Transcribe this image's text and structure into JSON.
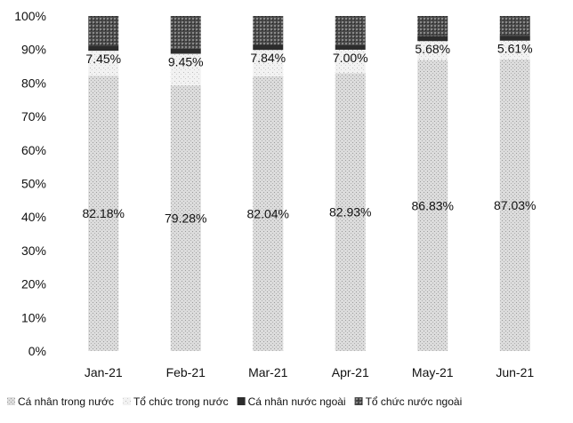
{
  "chart_data": {
    "type": "bar",
    "stacked": true,
    "percent_stacked": true,
    "categories": [
      "Jan-21",
      "Feb-21",
      "Mar-21",
      "Apr-21",
      "May-21",
      "Jun-21"
    ],
    "series": [
      {
        "name": "Cá nhân trong nước",
        "values": [
          82.18,
          79.28,
          82.04,
          82.93,
          86.83,
          87.03
        ],
        "labels": [
          "82.18%",
          "79.28%",
          "82.04%",
          "82.93%",
          "86.83%",
          "87.03%"
        ],
        "color": "#d6d6d6"
      },
      {
        "name": "Tổ chức trong nước",
        "values": [
          7.45,
          9.45,
          7.84,
          7.0,
          5.68,
          5.61
        ],
        "labels": [
          "7.45%",
          "9.45%",
          "7.84%",
          "7.00%",
          "5.68%",
          "5.61%"
        ],
        "color": "#ececec"
      },
      {
        "name": "Cá nhân nước ngoài",
        "values": [
          1.5,
          1.5,
          1.5,
          1.5,
          1.5,
          1.5
        ],
        "labels": [
          "",
          "",
          "",
          "",
          "",
          ""
        ],
        "color": "#2c2c2c"
      },
      {
        "name": "Tổ chức nước ngoài",
        "values": [
          8.87,
          9.77,
          8.62,
          8.57,
          5.99,
          5.86
        ],
        "labels": [
          "",
          "",
          "",
          "",
          "",
          ""
        ],
        "color": "#555555"
      }
    ],
    "ylim": [
      0,
      100
    ],
    "yticks": [
      "0%",
      "10%",
      "20%",
      "30%",
      "40%",
      "50%",
      "60%",
      "70%",
      "80%",
      "90%",
      "100%"
    ],
    "xlabel": "",
    "ylabel": "",
    "title": "",
    "legend_position": "bottom",
    "grid": false
  }
}
